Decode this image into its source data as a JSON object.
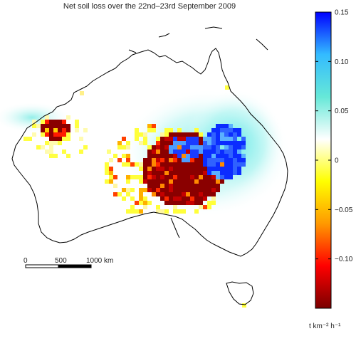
{
  "title": "Net soil loss over the 22nd–23rd September 2009",
  "colorbar": {
    "min": -0.15,
    "max": 0.15,
    "ticks": [
      {
        "value": 0.15,
        "label": "0.15"
      },
      {
        "value": 0.1,
        "label": "0.10"
      },
      {
        "value": 0.05,
        "label": "0.05"
      },
      {
        "value": 0.0,
        "label": "0"
      },
      {
        "value": -0.05,
        "label": "−0.05"
      },
      {
        "value": -0.1,
        "label": "−0.10"
      }
    ],
    "colors": [
      "#7a0000",
      "#ff0000",
      "#ff9900",
      "#ffff00",
      "#ffffff",
      "#66e8d8",
      "#33bbff",
      "#0000ff"
    ],
    "unit_label": "t km⁻² h⁻¹"
  },
  "scale_bar": {
    "labels": [
      "0",
      "500",
      "1000 km"
    ]
  }
}
